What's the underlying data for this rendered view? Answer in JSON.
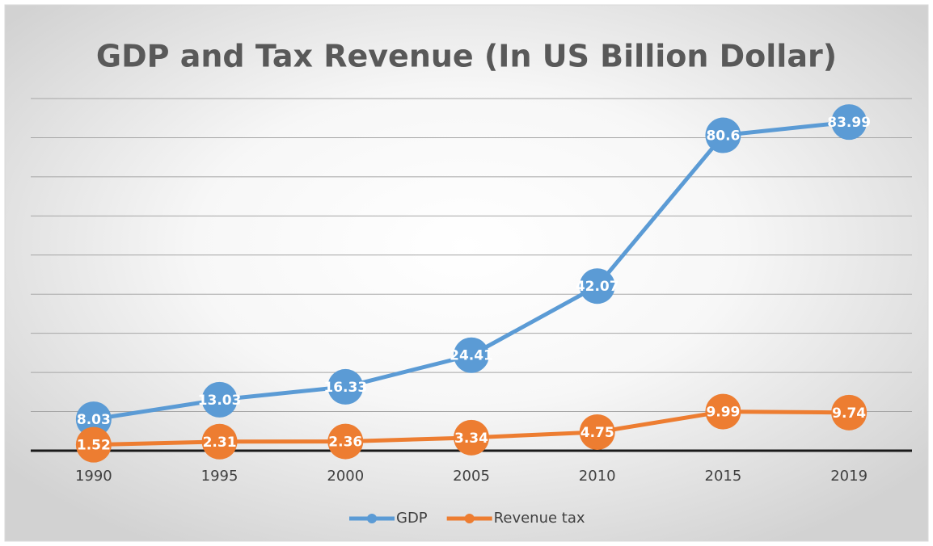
{
  "chart_data": {
    "type": "line",
    "title": "GDP and Tax Revenue (In US Billion Dollar)",
    "categories": [
      "1990",
      "1995",
      "2000",
      "2005",
      "2010",
      "2015",
      "2019"
    ],
    "series": [
      {
        "name": "GDP",
        "color": "#5b9bd5",
        "values": [
          8.03,
          13.03,
          16.33,
          24.41,
          42.07,
          80.6,
          83.99
        ]
      },
      {
        "name": "Revenue tax",
        "color": "#ed7d31",
        "values": [
          1.52,
          2.31,
          2.36,
          3.34,
          4.75,
          9.99,
          9.74
        ]
      }
    ],
    "ylim": [
      0,
      90
    ],
    "yticks": [
      0,
      10,
      20,
      30,
      40,
      50,
      60,
      70,
      80,
      90
    ],
    "grid": true,
    "legend": "bottom"
  }
}
